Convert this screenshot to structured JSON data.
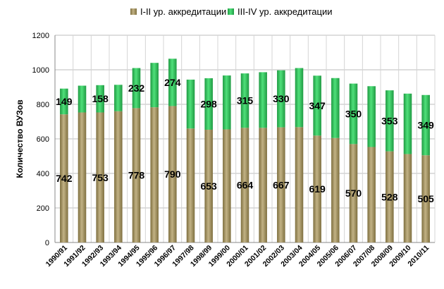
{
  "chart_data": {
    "type": "bar",
    "stacked": true,
    "title": "",
    "xlabel": "",
    "ylabel": "Количество ВУЗов",
    "ylim": [
      0,
      1200
    ],
    "yticks": [
      "0",
      "200",
      "400",
      "600",
      "800",
      "1000",
      "1200"
    ],
    "grid": "horizontal",
    "legend_position": "top",
    "categories": [
      "1990/91",
      "1991/92",
      "1992/93",
      "1993/94",
      "1994/95",
      "1995/96",
      "1996/97",
      "1997/98",
      "1998/99",
      "1999/00",
      "2000/01",
      "2001/02",
      "2002/03",
      "2003/04",
      "2004/05",
      "2005/06",
      "2006/07",
      "2007/08",
      "2008/09",
      "2009/10",
      "2010/11"
    ],
    "series": [
      {
        "name": "I-II ур. аккредитации",
        "color": "#9b8b55",
        "values": [
          742,
          753,
          753,
          760,
          778,
          783,
          790,
          660,
          653,
          655,
          664,
          664,
          667,
          668,
          619,
          605,
          570,
          553,
          528,
          512,
          505
        ],
        "labels": [
          "742",
          "",
          "753",
          "",
          "778",
          "",
          "790",
          "",
          "653",
          "",
          "664",
          "",
          "667",
          "",
          "619",
          "",
          "570",
          "",
          "528",
          "",
          "505"
        ]
      },
      {
        "name": "III-IV ур. аккредитации",
        "color": "#2ec45a",
        "values": [
          149,
          155,
          158,
          153,
          232,
          257,
          274,
          283,
          298,
          312,
          315,
          322,
          330,
          342,
          347,
          347,
          350,
          352,
          353,
          350,
          349
        ],
        "labels": [
          "149",
          "",
          "158",
          "",
          "232",
          "",
          "274",
          "",
          "298",
          "",
          "315",
          "",
          "330",
          "",
          "347",
          "",
          "350",
          "",
          "353",
          "",
          "349"
        ]
      }
    ]
  }
}
